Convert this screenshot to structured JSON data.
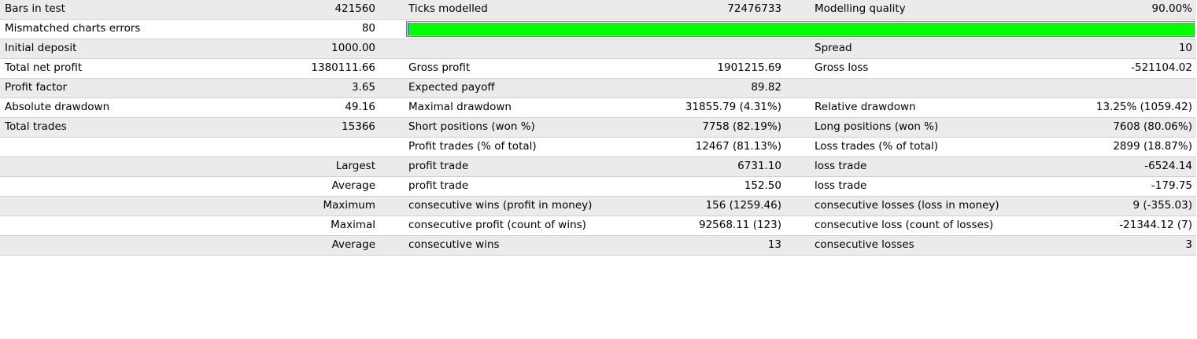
{
  "colors": {
    "row_odd": "#ebebeb",
    "row_even": "#ffffff",
    "quality_bar_fill": "#00ff00"
  },
  "modelling_quality_fraction": 1.0,
  "rows": [
    {
      "c1": "Bars in test",
      "c2": "421560",
      "c3": "Ticks modelled",
      "c4": "72476733",
      "c5": "Modelling quality",
      "c6": "90.00%"
    },
    {
      "c1": "Mismatched charts errors",
      "c2": "80",
      "c3": "",
      "c4": "",
      "c5": "",
      "c6": ""
    },
    {
      "c1": "Initial deposit",
      "c2": "1000.00",
      "c3": "",
      "c4": "",
      "c5": "Spread",
      "c6": "10"
    },
    {
      "c1": "Total net profit",
      "c2": "1380111.66",
      "c3": "Gross profit",
      "c4": "1901215.69",
      "c5": "Gross loss",
      "c6": "-521104.02"
    },
    {
      "c1": "Profit factor",
      "c2": "3.65",
      "c3": "Expected payoff",
      "c4": "89.82",
      "c5": "",
      "c6": ""
    },
    {
      "c1": "Absolute drawdown",
      "c2": "49.16",
      "c3": "Maximal drawdown",
      "c4": "31855.79 (4.31%)",
      "c5": "Relative drawdown",
      "c6": "13.25% (1059.42)"
    },
    {
      "c1": "Total trades",
      "c2": "15366",
      "c3": "Short positions (won %)",
      "c4": "7758 (82.19%)",
      "c5": "Long positions (won %)",
      "c6": "7608 (80.06%)"
    },
    {
      "c1": "",
      "c2": "",
      "c3": "Profit trades (% of total)",
      "c4": "12467 (81.13%)",
      "c5": "Loss trades (% of total)",
      "c6": "2899 (18.87%)"
    },
    {
      "c1": "",
      "c2": "Largest",
      "c3": "profit trade",
      "c4": "6731.10",
      "c5": "loss trade",
      "c6": "-6524.14"
    },
    {
      "c1": "",
      "c2": "Average",
      "c3": "profit trade",
      "c4": "152.50",
      "c5": "loss trade",
      "c6": "-179.75"
    },
    {
      "c1": "",
      "c2": "Maximum",
      "c3": "consecutive wins (profit in money)",
      "c4": "156 (1259.46)",
      "c5": "consecutive losses (loss in money)",
      "c6": "9 (-355.03)"
    },
    {
      "c1": "",
      "c2": "Maximal",
      "c3": "consecutive profit (count of wins)",
      "c4": "92568.11 (123)",
      "c5": "consecutive loss (count of losses)",
      "c6": "-21344.12 (7)"
    },
    {
      "c1": "",
      "c2": "Average",
      "c3": "consecutive wins",
      "c4": "13",
      "c5": "consecutive losses",
      "c6": "3"
    }
  ]
}
